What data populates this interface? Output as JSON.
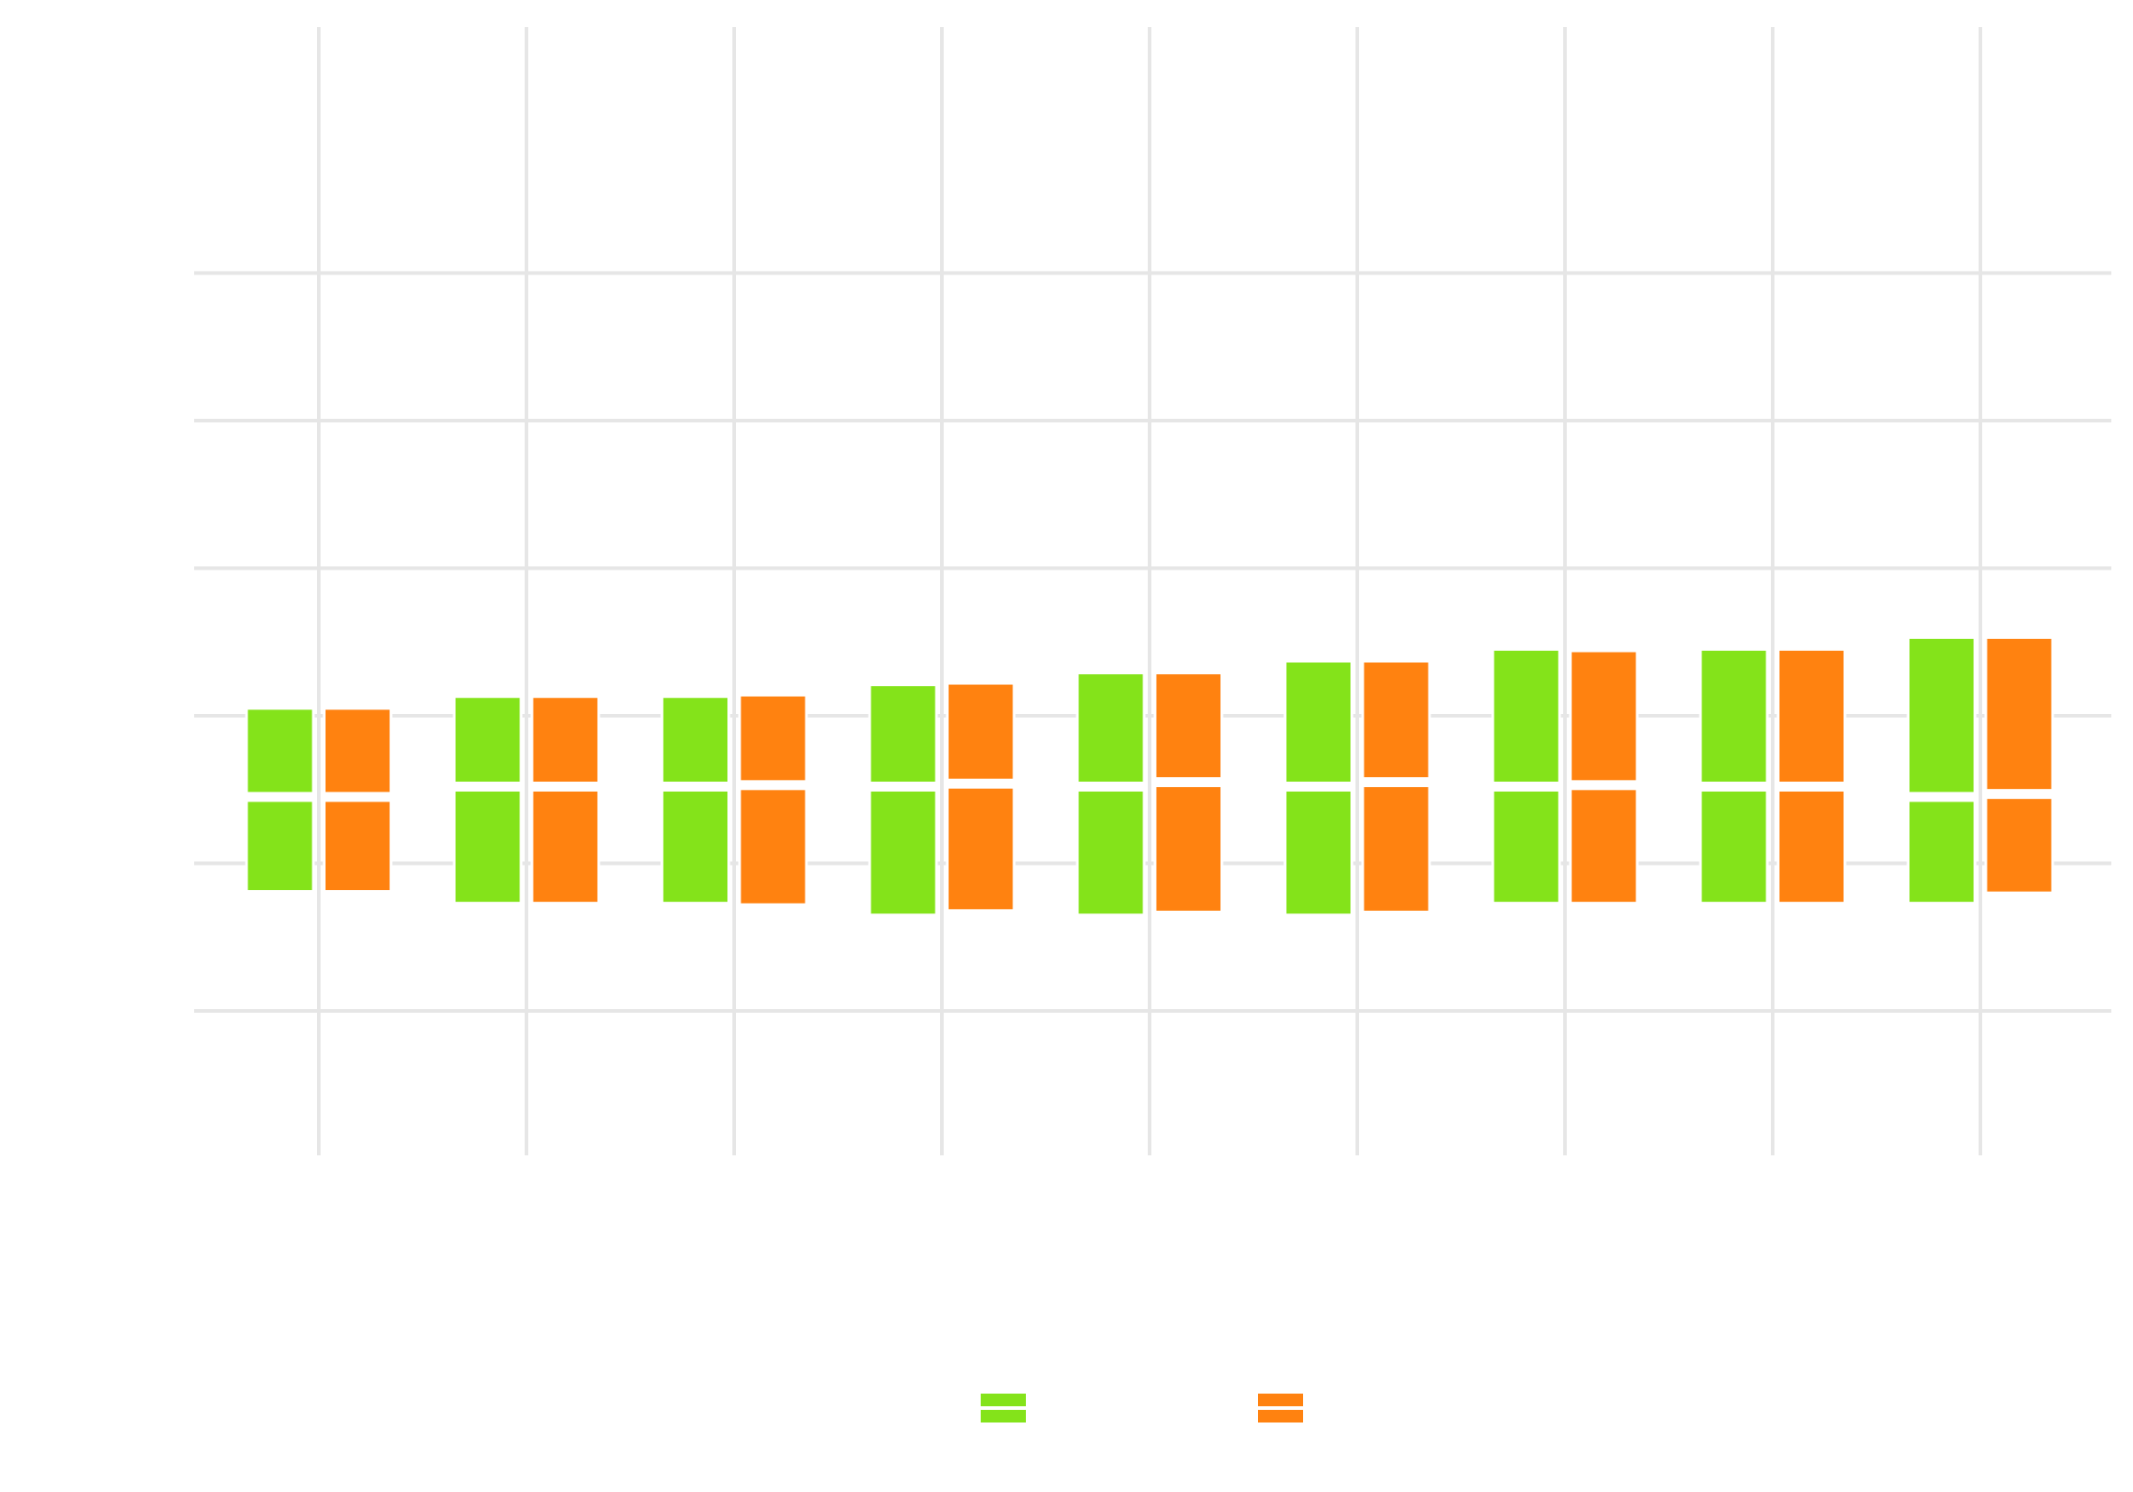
{
  "chart_data": {
    "type": "bar",
    "subtype": "grouped-boxplot",
    "title": "",
    "xlabel": "",
    "ylabel": "",
    "x_tick_positions": [
      1,
      2,
      3,
      4,
      5,
      6,
      7,
      8,
      9
    ],
    "ylim": [
      0,
      7
    ],
    "y_gridlines": [
      1,
      2,
      3,
      4,
      5,
      6
    ],
    "grid": true,
    "legend_placement": "bottom-center",
    "series": [
      {
        "color": "#84e31a",
        "boxes": [
          {
            "x": 1,
            "lower": 1.81,
            "median": 2.45,
            "upper": 3.05
          },
          {
            "x": 2,
            "lower": 1.73,
            "median": 2.52,
            "upper": 3.13
          },
          {
            "x": 3,
            "lower": 1.73,
            "median": 2.52,
            "upper": 3.13
          },
          {
            "x": 4,
            "lower": 1.65,
            "median": 2.52,
            "upper": 3.21
          },
          {
            "x": 5,
            "lower": 1.65,
            "median": 2.52,
            "upper": 3.29
          },
          {
            "x": 6,
            "lower": 1.65,
            "median": 2.52,
            "upper": 3.37
          },
          {
            "x": 7,
            "lower": 1.73,
            "median": 2.52,
            "upper": 3.45
          },
          {
            "x": 8,
            "lower": 1.73,
            "median": 2.52,
            "upper": 3.45
          },
          {
            "x": 9,
            "lower": 1.73,
            "median": 2.45,
            "upper": 3.53
          }
        ]
      },
      {
        "color": "#ff8210",
        "boxes": [
          {
            "x": 1,
            "lower": 1.81,
            "median": 2.45,
            "upper": 3.05
          },
          {
            "x": 2,
            "lower": 1.73,
            "median": 2.52,
            "upper": 3.13
          },
          {
            "x": 3,
            "lower": 1.72,
            "median": 2.53,
            "upper": 3.14
          },
          {
            "x": 4,
            "lower": 1.68,
            "median": 2.54,
            "upper": 3.22
          },
          {
            "x": 5,
            "lower": 1.67,
            "median": 2.55,
            "upper": 3.29
          },
          {
            "x": 6,
            "lower": 1.67,
            "median": 2.55,
            "upper": 3.37
          },
          {
            "x": 7,
            "lower": 1.73,
            "median": 2.53,
            "upper": 3.44
          },
          {
            "x": 8,
            "lower": 1.73,
            "median": 2.52,
            "upper": 3.45
          },
          {
            "x": 9,
            "lower": 1.8,
            "median": 2.47,
            "upper": 3.53
          }
        ]
      }
    ]
  }
}
